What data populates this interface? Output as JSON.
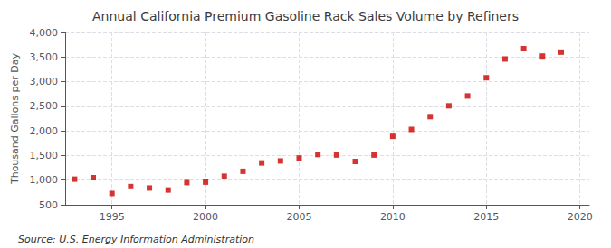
{
  "chart_data": {
    "type": "scatter",
    "title": "Annual California Premium Gasoline Rack Sales Volume by Refiners",
    "ylabel": "Thousand Gallons per Day",
    "annotations": [
      "Source: U.S. Energy Information Administration"
    ],
    "x": [
      1993,
      1994,
      1995,
      1996,
      1997,
      1998,
      1999,
      2000,
      2001,
      2002,
      2003,
      2004,
      2005,
      2006,
      2007,
      2008,
      2009,
      2010,
      2011,
      2012,
      2013,
      2014,
      2015,
      2016,
      2017,
      2018,
      2019
    ],
    "values": [
      1020,
      1050,
      730,
      870,
      840,
      800,
      950,
      960,
      1080,
      1180,
      1350,
      1390,
      1450,
      1520,
      1510,
      1380,
      1510,
      1890,
      2030,
      2290,
      2510,
      2710,
      3080,
      3460,
      3670,
      3520,
      3600
    ],
    "color": "#cc0000",
    "marker": "square",
    "xlim": [
      1992.5,
      2020.5
    ],
    "xticks": [
      1995,
      2000,
      2005,
      2010,
      2015,
      2020
    ],
    "ylim": [
      500,
      4000
    ],
    "yticks": [
      500,
      {
        "value": 1000,
        "label": "1,000"
      },
      {
        "value": 1500,
        "label": "1,500"
      },
      {
        "value": 2000,
        "label": "2,000"
      },
      {
        "value": 2500,
        "label": "2,500"
      },
      {
        "value": 3000,
        "label": "3,000"
      },
      {
        "value": 3500,
        "label": "3,500"
      },
      {
        "value": 4000,
        "label": "4,000"
      }
    ],
    "grid": true
  }
}
